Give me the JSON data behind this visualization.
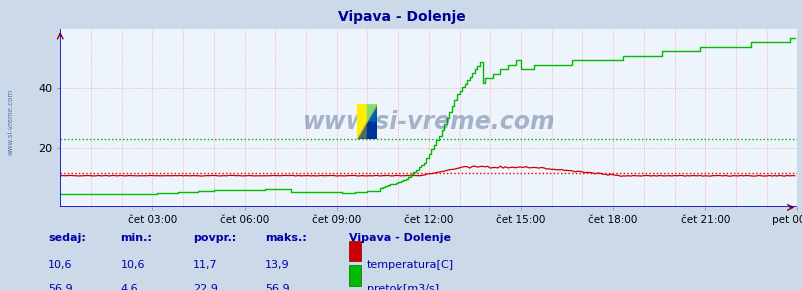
{
  "title": "Vipava - Dolenje",
  "bg_color": "#ccd9e8",
  "plot_bg_color": "#eef4fb",
  "grid_color": "#ff8888",
  "temp_color": "#cc0000",
  "flow_color": "#00bb00",
  "avg_temp_color": "#dd0000",
  "avg_flow_color": "#00aa00",
  "spine_color": "#0000cc",
  "x_labels": [
    "čet 03:00",
    "čet 06:00",
    "čet 09:00",
    "čet 12:00",
    "čet 15:00",
    "čet 18:00",
    "čet 21:00",
    "pet 00:00"
  ],
  "x_ticks_frac": [
    0.125,
    0.25,
    0.375,
    0.5,
    0.625,
    0.75,
    0.875,
    1.0
  ],
  "ylim_max": 60,
  "y_labels": [
    20,
    40
  ],
  "temp_avg": 11.7,
  "flow_avg": 22.9,
  "watermark": "www.si-vreme.com",
  "left_label": "www.si-vreme.com",
  "legend_title": "Vipava - Dolenje",
  "legend_items": [
    "temperatura[C]",
    "pretok[m3/s]"
  ],
  "stats_headers": [
    "sedaj:",
    "min.:",
    "povpr.:",
    "maks.:"
  ],
  "temp_stats": [
    "10,6",
    "10,6",
    "11,7",
    "13,9"
  ],
  "flow_stats": [
    "56,9",
    "4,6",
    "22,9",
    "56,9"
  ],
  "temp_rect_color": "#cc0000",
  "flow_rect_color": "#00bb00",
  "text_color": "#0000aa",
  "title_color": "#000099"
}
